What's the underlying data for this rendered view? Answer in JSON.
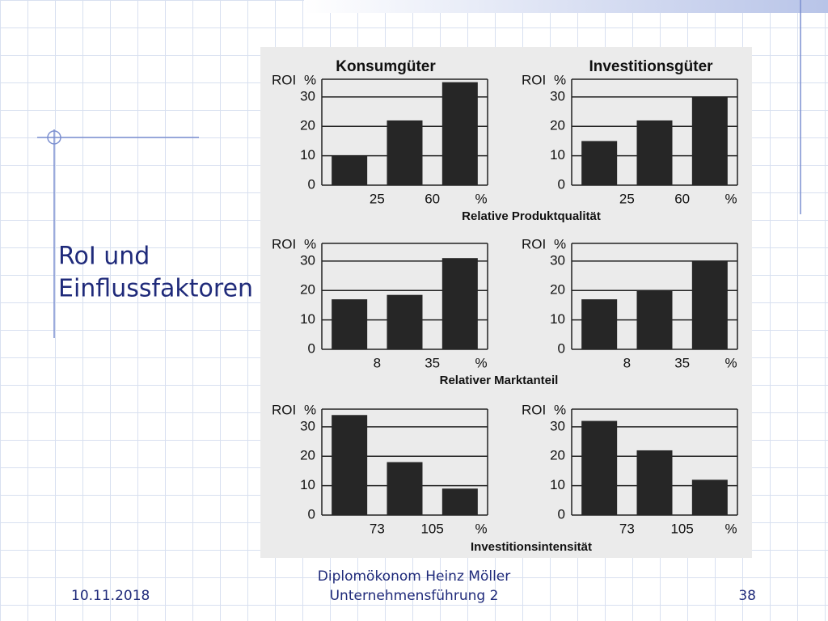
{
  "slide": {
    "title_lines": [
      "RoI und",
      "Einflussfaktoren"
    ],
    "footer": {
      "date": "10.11.2018",
      "author": "Diplomökonom Heinz Möller",
      "course": "Unternehmensführung 2",
      "page": "38"
    }
  },
  "column_titles": [
    "Konsumgüter",
    "Investitionsgüter"
  ],
  "row_labels": [
    "Relative Produktqualität",
    "Relativer Marktanteil",
    "Investitionsintensität"
  ],
  "chart_data": [
    {
      "type": "bar",
      "ylabel": "ROI",
      "yunit": "%",
      "categories": [
        null,
        null,
        null
      ],
      "boundary_labels": [
        "25",
        "60",
        "%"
      ],
      "values": [
        10,
        22,
        35
      ],
      "color": "#262626",
      "ylim": [
        0,
        36
      ],
      "yticks": [
        0,
        10,
        20,
        30
      ]
    },
    {
      "type": "bar",
      "ylabel": "ROI",
      "yunit": "%",
      "categories": [
        null,
        null,
        null
      ],
      "boundary_labels": [
        "25",
        "60",
        "%"
      ],
      "values": [
        15,
        22,
        30
      ],
      "color": "#262626",
      "ylim": [
        0,
        36
      ],
      "yticks": [
        0,
        10,
        20,
        30
      ]
    },
    {
      "type": "bar",
      "ylabel": "ROI",
      "yunit": "%",
      "categories": [
        null,
        null,
        null
      ],
      "boundary_labels": [
        "8",
        "35",
        "%"
      ],
      "values": [
        17,
        18.5,
        31
      ],
      "color": "#262626",
      "ylim": [
        0,
        36
      ],
      "yticks": [
        0,
        10,
        20,
        30
      ]
    },
    {
      "type": "bar",
      "ylabel": "ROI",
      "yunit": "%",
      "categories": [
        null,
        null,
        null
      ],
      "boundary_labels": [
        "8",
        "35",
        "%"
      ],
      "values": [
        17,
        20,
        30
      ],
      "color": "#262626",
      "ylim": [
        0,
        36
      ],
      "yticks": [
        0,
        10,
        20,
        30
      ]
    },
    {
      "type": "bar",
      "ylabel": "ROI",
      "yunit": "%",
      "categories": [
        null,
        null,
        null
      ],
      "boundary_labels": [
        "73",
        "105",
        "%"
      ],
      "values": [
        34,
        18,
        9
      ],
      "color": "#262626",
      "ylim": [
        0,
        36
      ],
      "yticks": [
        0,
        10,
        20,
        30
      ]
    },
    {
      "type": "bar",
      "ylabel": "ROI",
      "yunit": "%",
      "categories": [
        null,
        null,
        null
      ],
      "boundary_labels": [
        "73",
        "105",
        "%"
      ],
      "values": [
        32,
        22,
        12
      ],
      "color": "#262626",
      "ylim": [
        0,
        36
      ],
      "yticks": [
        0,
        10,
        20,
        30
      ]
    }
  ]
}
